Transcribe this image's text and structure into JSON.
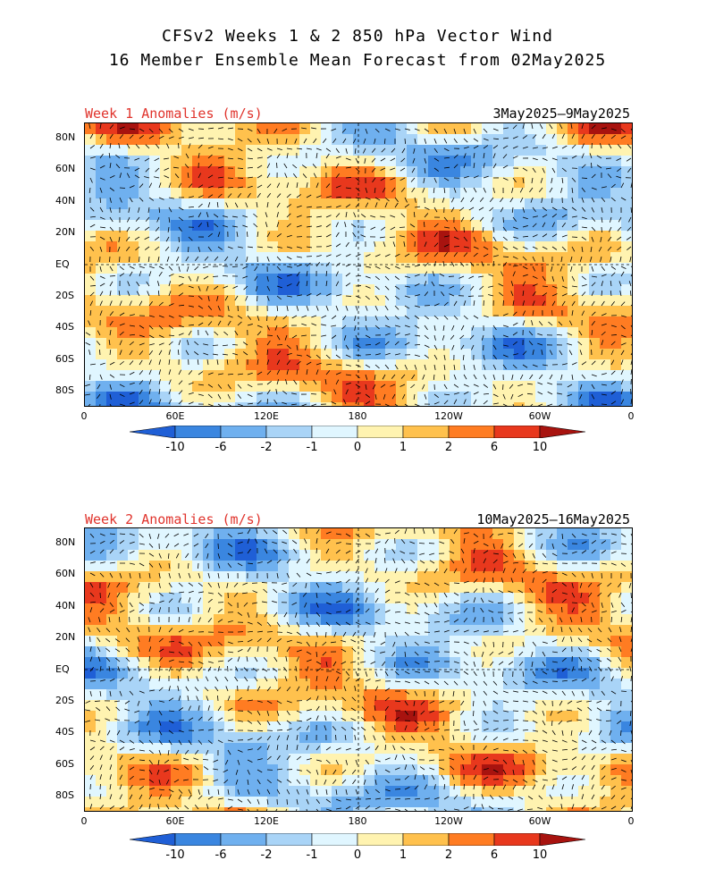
{
  "title": {
    "line1": "CFSv2 Weeks 1 & 2 850 hPa Vector Wind",
    "line2": "16 Member Ensemble Mean Forecast from 02May2025"
  },
  "panels": [
    {
      "label": "Week 1 Anomalies (m/s)",
      "dates": "3May2025–9May2025"
    },
    {
      "label": "Week 2 Anomalies (m/s)",
      "dates": "10May2025–16May2025"
    }
  ],
  "axes": {
    "lat_ticks": [
      "80N",
      "60N",
      "40N",
      "20N",
      "EQ",
      "20S",
      "40S",
      "60S",
      "80S"
    ],
    "lon_ticks": [
      "0",
      "60E",
      "120E",
      "180",
      "120W",
      "60W",
      "0"
    ]
  },
  "colorbar": {
    "labels": [
      "-10",
      "-6",
      "-2",
      "-1",
      "0",
      "1",
      "2",
      "6",
      "10"
    ],
    "colors": [
      "#1f5fd6",
      "#3a86e0",
      "#6fb0ef",
      "#a9d4f7",
      "#e0f6ff",
      "#fff3b0",
      "#ffc14d",
      "#ff7c22",
      "#e8381d",
      "#a8130f"
    ]
  }
}
